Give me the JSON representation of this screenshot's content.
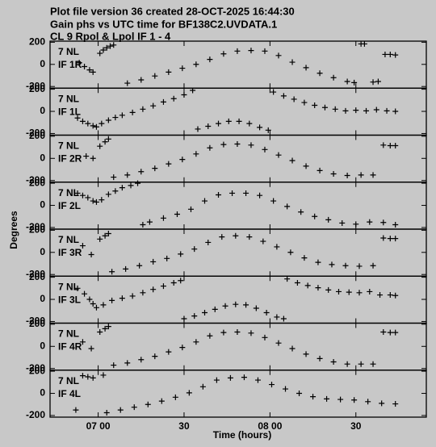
{
  "chart_data": {
    "type": "scatter",
    "title": "Plot file version 36  created 28-OCT-2025 16:44:30",
    "subtitle": "Gain phs vs UTC time for BF138C2.UVDATA.1",
    "subtitle2": "CL 9  Rpol & Lpol  IF 1 - 4",
    "xlabel": "Time (hours)",
    "ylabel": "Degrees",
    "xlim": [
      6.72,
      8.91
    ],
    "xticks": [
      {
        "value": 7,
        "label": "07 00"
      },
      {
        "value": 7.5,
        "label": "30"
      },
      {
        "value": 8,
        "label": "08 00"
      },
      {
        "value": 8.5,
        "label": "30"
      }
    ],
    "ylim": [
      -215,
      210
    ],
    "yticks": [
      -200,
      0,
      200
    ],
    "color": "#000000",
    "panels": [
      {
        "antenna": "7 NL",
        "name": "IF 1R",
        "x": [
          6.89,
          6.92,
          6.95,
          6.97,
          7.01,
          7.03,
          7.05,
          7.07,
          7.09,
          7.17,
          7.25,
          7.33,
          7.41,
          7.49,
          7.57,
          7.65,
          7.73,
          7.81,
          7.89,
          7.97,
          8.05,
          8.13,
          8.21,
          8.29,
          8.37,
          8.45,
          8.49,
          8.53,
          8.55,
          8.6,
          8.63,
          8.67,
          8.7,
          8.73
        ],
        "values": [
          15,
          -20,
          -50,
          -70,
          100,
          130,
          150,
          165,
          175,
          -170,
          -140,
          -105,
          -70,
          -35,
          0,
          45,
          95,
          120,
          125,
          120,
          80,
          20,
          -30,
          -80,
          -120,
          -155,
          -165,
          185,
          185,
          -160,
          -155,
          90,
          90,
          85
        ]
      },
      {
        "antenna": "7 NL",
        "name": "IF 1L",
        "x": [
          6.88,
          6.91,
          6.94,
          6.97,
          6.99,
          7.02,
          7.06,
          7.1,
          7.14,
          7.2,
          7.26,
          7.32,
          7.38,
          7.44,
          7.5,
          7.55,
          7.58,
          7.64,
          7.7,
          7.76,
          7.82,
          7.88,
          7.94,
          7.99,
          8.02,
          8.08,
          8.14,
          8.2,
          8.26,
          8.32,
          8.38,
          8.44,
          8.5,
          8.56,
          8.62,
          8.68,
          8.73
        ],
        "values": [
          -60,
          -90,
          -110,
          -130,
          -140,
          -110,
          -80,
          -55,
          -35,
          -10,
          20,
          50,
          85,
          115,
          150,
          190,
          -160,
          -135,
          -110,
          -90,
          -90,
          -110,
          -145,
          -170,
          175,
          140,
          110,
          80,
          55,
          35,
          20,
          5,
          10,
          5,
          15,
          5,
          0
        ]
      },
      {
        "antenna": "7 NL",
        "name": "IF 2R",
        "x": [
          6.93,
          6.97,
          7.01,
          7.04,
          7.06,
          7.09,
          7.17,
          7.25,
          7.33,
          7.41,
          7.49,
          7.57,
          7.65,
          7.73,
          7.81,
          7.89,
          7.97,
          8.05,
          8.13,
          8.21,
          8.29,
          8.37,
          8.45,
          8.53,
          8.6,
          8.66,
          8.7,
          8.73
        ],
        "values": [
          20,
          0,
          110,
          150,
          175,
          -170,
          -150,
          -120,
          -90,
          -50,
          -10,
          40,
          95,
          125,
          130,
          120,
          80,
          30,
          -20,
          -70,
          -110,
          -140,
          -155,
          -150,
          -150,
          120,
          115,
          115
        ]
      },
      {
        "antenna": "7 NL",
        "name": "IF 2L",
        "x": [
          6.88,
          6.91,
          6.94,
          6.97,
          6.99,
          7.02,
          7.06,
          7.1,
          7.14,
          7.19,
          7.23,
          7.26,
          7.3,
          7.38,
          7.46,
          7.54,
          7.62,
          7.7,
          7.78,
          7.86,
          7.94,
          8.02,
          8.1,
          8.18,
          8.26,
          8.34,
          8.42,
          8.5,
          8.58,
          8.66,
          8.73
        ],
        "values": [
          110,
          90,
          70,
          40,
          30,
          50,
          100,
          130,
          160,
          180,
          200,
          -175,
          -150,
          -115,
          -80,
          -35,
          40,
          95,
          110,
          110,
          90,
          40,
          -10,
          -60,
          -100,
          -130,
          -160,
          -170,
          -150,
          -155,
          -175
        ]
      },
      {
        "antenna": "7 NL",
        "name": "IF 3R",
        "x": [
          6.91,
          6.96,
          7.01,
          7.04,
          7.06,
          7.08,
          7.16,
          7.24,
          7.32,
          7.4,
          7.48,
          7.56,
          7.64,
          7.72,
          7.8,
          7.88,
          7.96,
          8.04,
          8.12,
          8.2,
          8.28,
          8.36,
          8.44,
          8.52,
          8.6,
          8.66,
          8.7,
          8.73
        ],
        "values": [
          60,
          -20,
          120,
          150,
          170,
          -175,
          -150,
          -120,
          -85,
          -55,
          -15,
          30,
          90,
          140,
          150,
          140,
          100,
          50,
          0,
          -50,
          -90,
          -110,
          -120,
          -125,
          -120,
          130,
          125,
          125
        ]
      },
      {
        "antenna": "7 NL",
        "name": "IF 3L",
        "x": [
          6.88,
          6.92,
          6.95,
          6.97,
          6.99,
          7.03,
          7.08,
          7.14,
          7.2,
          7.26,
          7.32,
          7.38,
          7.44,
          7.48,
          7.5,
          7.56,
          7.62,
          7.68,
          7.74,
          7.8,
          7.86,
          7.92,
          7.98,
          8.04,
          8.08,
          8.1,
          8.16,
          8.22,
          8.28,
          8.34,
          8.4,
          8.46,
          8.52,
          8.58,
          8.64,
          8.7,
          8.73
        ],
        "values": [
          100,
          50,
          0,
          -40,
          -75,
          -50,
          -10,
          10,
          30,
          60,
          90,
          120,
          150,
          170,
          -175,
          -150,
          -120,
          -90,
          -60,
          -45,
          -50,
          -80,
          -120,
          -160,
          -175,
          185,
          150,
          125,
          105,
          85,
          70,
          65,
          60,
          70,
          40,
          40,
          35
        ]
      },
      {
        "antenna": "7 NL",
        "name": "IF 4R",
        "x": [
          6.91,
          6.96,
          7.01,
          7.04,
          7.06,
          7.09,
          7.17,
          7.25,
          7.33,
          7.41,
          7.49,
          7.57,
          7.65,
          7.73,
          7.81,
          7.89,
          7.97,
          8.05,
          8.13,
          8.21,
          8.29,
          8.37,
          8.45,
          8.53,
          8.6,
          8.66,
          8.7,
          8.73
        ],
        "values": [
          40,
          -20,
          130,
          160,
          180,
          -170,
          -150,
          -120,
          -90,
          -50,
          -10,
          40,
          95,
          125,
          130,
          120,
          80,
          30,
          -20,
          -70,
          -110,
          -140,
          -160,
          -160,
          -160,
          130,
          125,
          125
        ]
      },
      {
        "antenna": "7 NL",
        "name": "IF 4L",
        "x": [
          6.87,
          6.91,
          6.94,
          6.97,
          7.03,
          7.05,
          7.13,
          7.21,
          7.29,
          7.37,
          7.45,
          7.53,
          7.61,
          7.69,
          7.77,
          7.85,
          7.93,
          8.01,
          8.09,
          8.17,
          8.25,
          8.33,
          8.41,
          8.49,
          8.57,
          8.65,
          8.73
        ],
        "values": [
          -150,
          160,
          150,
          140,
          165,
          -175,
          -150,
          -125,
          -100,
          -70,
          -35,
          5,
          60,
          120,
          140,
          145,
          120,
          80,
          40,
          0,
          -30,
          -50,
          -55,
          -60,
          -75,
          -90,
          -95
        ]
      }
    ]
  }
}
